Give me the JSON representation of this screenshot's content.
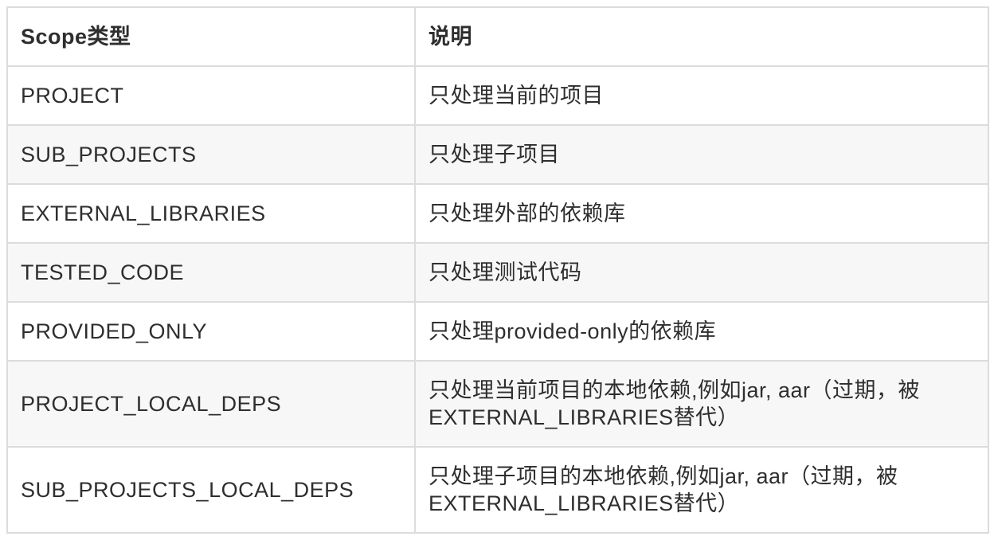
{
  "table": {
    "columns": {
      "scope": "Scope类型",
      "description": "说明"
    },
    "rows": [
      {
        "scope": "PROJECT",
        "description": "只处理当前的项目"
      },
      {
        "scope": "SUB_PROJECTS",
        "description": "只处理子项目"
      },
      {
        "scope": "EXTERNAL_LIBRARIES",
        "description": "只处理外部的依赖库"
      },
      {
        "scope": "TESTED_CODE",
        "description": "只处理测试代码"
      },
      {
        "scope": "PROVIDED_ONLY",
        "description": "只处理provided-only的依赖库"
      },
      {
        "scope": "PROJECT_LOCAL_DEPS",
        "description": "只处理当前项目的本地依赖,例如jar, aar（过期，被EXTERNAL_LIBRARIES替代）"
      },
      {
        "scope": "SUB_PROJECTS_LOCAL_DEPS",
        "description": "只处理子项目的本地依赖,例如jar, aar（过期，被EXTERNAL_LIBRARIES替代）"
      }
    ],
    "colors": {
      "stripe": "#f7f7f7",
      "border": "#dcdcdc",
      "text": "#2e2e2e",
      "background": "#ffffff"
    }
  }
}
